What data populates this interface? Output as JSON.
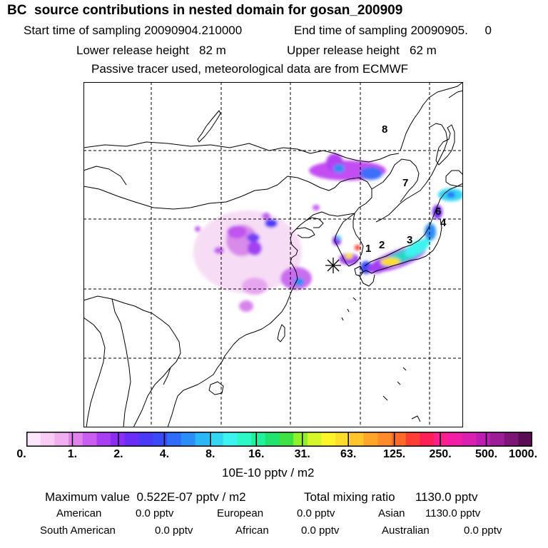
{
  "header": {
    "title": "BC  source contributions in nested domain for gosan_200909",
    "start": "Start time of sampling 20090904.210000",
    "end": "End time of sampling 20090905.     0",
    "lower": "Lower release height   82 m",
    "upper": "Upper release height   62 m",
    "tracer": "Passive tracer used, meteorological data are from ECMWF"
  },
  "map": {
    "receptor_marker": "asterisk",
    "region_labels": [
      "1",
      "2",
      "3",
      "4",
      "6",
      "7",
      "8"
    ]
  },
  "colorbar": {
    "ticks": [
      "0.",
      "1.",
      "2.",
      "4.",
      "8.",
      "16.",
      "31.",
      "63.",
      "125.",
      "250.",
      "500.",
      "1000."
    ],
    "units": "10E-10 pptv / m2"
  },
  "summary": {
    "max": "Maximum value  0.522E-07 pptv / m2",
    "total": "Total mixing ratio      1130.0 pptv"
  },
  "regions": [
    {
      "name": "American",
      "value": "0.0 pptv"
    },
    {
      "name": "European",
      "value": "0.0 pptv"
    },
    {
      "name": "Asian",
      "value": "1130.0 pptv"
    },
    {
      "name": "South American",
      "value": "0.0 pptv"
    },
    {
      "name": "African",
      "value": "0.0 pptv"
    },
    {
      "name": "Australian",
      "value": "0.0 pptv"
    }
  ],
  "colors": {
    "scale": [
      "#fde6fb",
      "#f8ccf4",
      "#f2aef0",
      "#e283ec",
      "#c95ef1",
      "#a93ff3",
      "#8a2ef5",
      "#6a2cf7",
      "#4a3af8",
      "#3b4af9",
      "#2e6cf9",
      "#2b8ef8",
      "#2bb6f7",
      "#35d6f4",
      "#3df3ef",
      "#2cf9c7",
      "#20f29b",
      "#21e36f",
      "#3fe244",
      "#8ef22a",
      "#d5f629",
      "#fff42a",
      "#ffdd2a",
      "#ffc52a",
      "#ffa62a",
      "#ff8a2a",
      "#ff6a2a",
      "#ff3f35",
      "#ff1e55",
      "#ff1f8e",
      "#f21fa6",
      "#db1fb1",
      "#be1db2",
      "#9d1c97",
      "#7d1577",
      "#5a0d55"
    ]
  }
}
